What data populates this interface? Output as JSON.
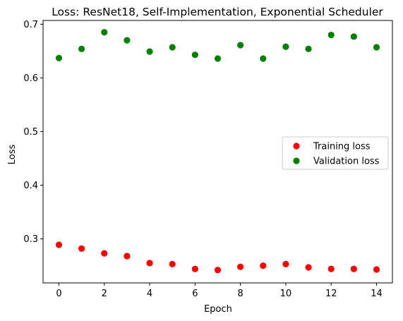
{
  "chart_data": {
    "type": "scatter",
    "title": "Loss: ResNet18, Self-Implementation, Exponential Scheduler",
    "xlabel": "Epoch",
    "ylabel": "Loss",
    "xlim": [
      -0.7,
      14.7
    ],
    "ylim": [
      0.218,
      0.707
    ],
    "xticks": [
      0,
      2,
      4,
      6,
      8,
      10,
      12,
      14
    ],
    "yticks": [
      0.3,
      0.4,
      0.5,
      0.6,
      0.7
    ],
    "grid": false,
    "legend_position": "center-right",
    "x": [
      0,
      1,
      2,
      3,
      4,
      5,
      6,
      7,
      8,
      9,
      10,
      11,
      12,
      13,
      14
    ],
    "series": [
      {
        "name": "Training loss",
        "color": "#ff0000",
        "values": [
          0.289,
          0.282,
          0.273,
          0.268,
          0.255,
          0.253,
          0.244,
          0.242,
          0.248,
          0.25,
          0.253,
          0.247,
          0.244,
          0.244,
          0.243
        ]
      },
      {
        "name": "Validation loss",
        "color": "#008000",
        "values": [
          0.637,
          0.654,
          0.685,
          0.67,
          0.649,
          0.657,
          0.643,
          0.636,
          0.661,
          0.636,
          0.658,
          0.654,
          0.68,
          0.677,
          0.657
        ]
      }
    ]
  }
}
